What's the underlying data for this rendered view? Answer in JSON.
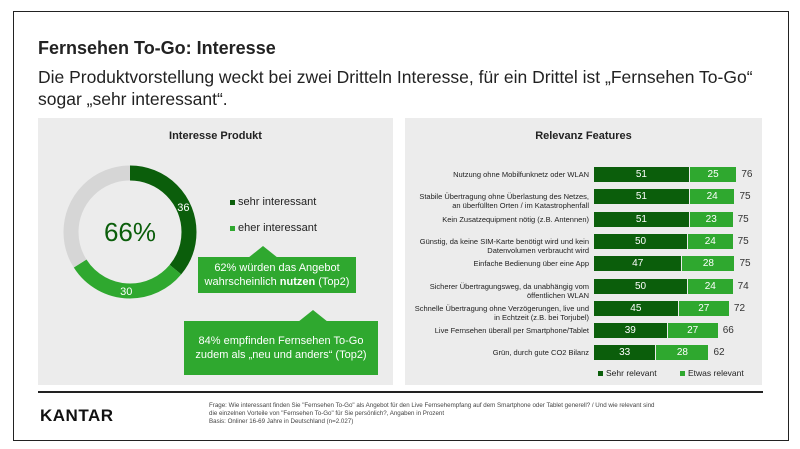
{
  "title": "Fernsehen To-Go: Interesse",
  "subtitle": "Die Produktvorstellung weckt bei zwei Dritteln Interesse, für ein Drittel ist „Fernsehen To-Go“ sogar „sehr interessant“.",
  "colors": {
    "dark": "#0b5e0b",
    "light": "#2fa82f",
    "grey": "#d6d6d6"
  },
  "left": {
    "title": "Interesse Produkt",
    "center_label": "66%",
    "segments": [
      {
        "name": "sehr interessant",
        "value": 36
      },
      {
        "name": "eher interessant",
        "value": 30
      },
      {
        "name": "rest",
        "value": 34
      }
    ],
    "legend": [
      "sehr interessant",
      "eher interessant"
    ],
    "callout1_pre": "62% würden das Angebot",
    "callout1_mid": "wahrscheinlich ",
    "callout1_bold": "nutzen",
    "callout1_post": " (Top2)",
    "callout2_line1": "84% empfinden Fernsehen To-Go",
    "callout2_line2": "zudem als „neu und anders“ (Top2)"
  },
  "chart_data": {
    "type": "bar",
    "stacked": true,
    "title": "Relevanz Features",
    "categories": [
      "Nutzung ohne Mobilfunknetz oder WLAN",
      "Stabile Übertragung ohne Überlastung des Netzes, an überfüllten Orten / im Katastrophenfall",
      "Kein Zusatzequipment nötig (z.B. Antennen)",
      "Günstig, da keine SIM-Karte benötigt wird und kein Datenvolumen verbraucht wird",
      "Einfache Bedienung über eine App",
      "Sicherer Übertragungsweg, da unabhängig vom öffentlichen WLAN",
      "Schnelle Übertragung ohne Verzögerungen, live und in Echtzeit (z.B. bei Torjubel)",
      "Live Fernsehen überall per Smartphone/Tablet",
      "Grün, durch gute CO2 Bilanz"
    ],
    "series": [
      {
        "name": "Sehr relevant",
        "values": [
          51,
          51,
          51,
          50,
          47,
          50,
          45,
          39,
          33
        ]
      },
      {
        "name": "Etwas relevant",
        "values": [
          25,
          24,
          23,
          24,
          28,
          24,
          27,
          27,
          28
        ]
      }
    ],
    "totals": [
      76,
      75,
      75,
      75,
      75,
      74,
      72,
      66,
      62
    ],
    "legend": "bottom"
  },
  "footer": {
    "logo": "KANTAR",
    "line1": "Frage: Wie interessant finden Sie \"Fernsehen To-Go\" als Angebot für den Live Fernsehempfang auf dem Smartphone oder Tablet generell? / Und wie relevant sind",
    "line2": "die einzelnen Vorteile von \"Fernsehen To-Go\" für Sie persönlich?, Angaben in Prozent",
    "line3": "Basis: Onliner 16-69 Jahre in Deutschland (n=2.027)"
  }
}
